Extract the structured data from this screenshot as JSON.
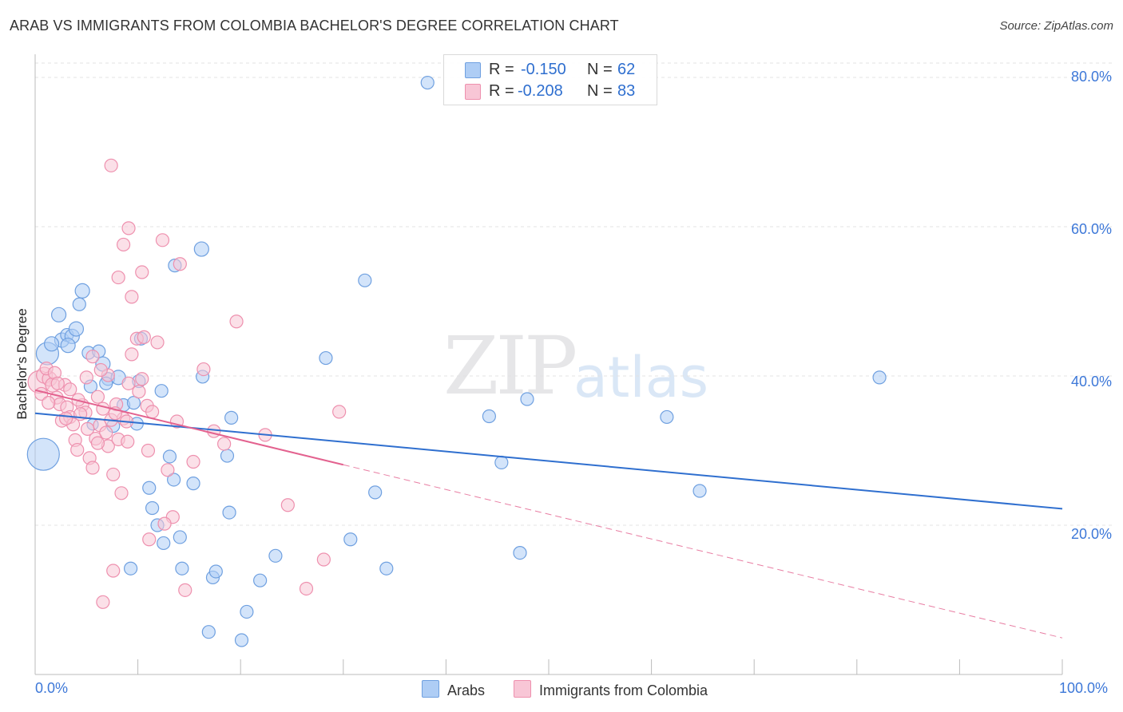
{
  "title": "ARAB VS IMMIGRANTS FROM COLOMBIA BACHELOR'S DEGREE CORRELATION CHART",
  "source": "Source: ZipAtlas.com",
  "watermark": {
    "zip": "ZIP",
    "atlas": "atlas"
  },
  "stats": [
    {
      "r_label": "R =",
      "r": "-0.150",
      "n_label": "N =",
      "n": "62",
      "color": "#aecdf5",
      "border": "#6fa0e0"
    },
    {
      "r_label": "R =",
      "r": "-0.208",
      "n_label": "N =",
      "n": "83",
      "color": "#f8c6d6",
      "border": "#ee90ae"
    }
  ],
  "legend": {
    "arabs": "Arabs",
    "colombia": "Immigrants from Colombia"
  },
  "x_ticks": {
    "min": "0.0%",
    "max": "100.0%"
  },
  "chart_data": {
    "type": "scatter",
    "title": "ARAB VS IMMIGRANTS FROM COLOMBIA BACHELOR'S DEGREE CORRELATION CHART",
    "xlabel": "",
    "ylabel": "Bachelor's Degree",
    "xlim": [
      0,
      100
    ],
    "ylim": [
      0,
      80
    ],
    "y_ticks": [
      {
        "value": 20,
        "label": "20.0%"
      },
      {
        "value": 40,
        "label": "40.0%"
      },
      {
        "value": 60,
        "label": "60.0%"
      },
      {
        "value": 80,
        "label": "80.0%"
      }
    ],
    "grid": true,
    "legend_position": "bottom",
    "series": [
      {
        "name": "Arabs",
        "color": "#6fa0e0",
        "fill": "#aecdf5",
        "trend": {
          "x0": 0,
          "y0": 35.0,
          "x1": 100,
          "y1": 22.2,
          "color": "#2f6fcf"
        },
        "points": [
          [
            1.2,
            43.0,
            14
          ],
          [
            0.8,
            29.5,
            20
          ],
          [
            2.3,
            48.2,
            9
          ],
          [
            2.6,
            44.8,
            9
          ],
          [
            3.1,
            45.5,
            8
          ],
          [
            3.6,
            45.3,
            9
          ],
          [
            4.0,
            46.3,
            9
          ],
          [
            4.3,
            49.6,
            8
          ],
          [
            4.6,
            51.4,
            9
          ],
          [
            5.2,
            43.1,
            8
          ],
          [
            5.6,
            33.5,
            7
          ],
          [
            6.2,
            43.3,
            8
          ],
          [
            6.6,
            41.6,
            9
          ],
          [
            5.4,
            38.6,
            8
          ],
          [
            7.1,
            39.6,
            8
          ],
          [
            8.1,
            39.8,
            9
          ],
          [
            8.6,
            36.1,
            8
          ],
          [
            7.6,
            33.3,
            8
          ],
          [
            9.6,
            36.4,
            8
          ],
          [
            10.1,
            39.3,
            8
          ],
          [
            10.3,
            45.0,
            8
          ],
          [
            11.1,
            25.0,
            8
          ],
          [
            11.4,
            22.3,
            8
          ],
          [
            11.9,
            20.0,
            8
          ],
          [
            12.5,
            17.6,
            8
          ],
          [
            12.3,
            38.0,
            8
          ],
          [
            13.1,
            29.2,
            8
          ],
          [
            13.5,
            26.1,
            8
          ],
          [
            14.1,
            18.4,
            8
          ],
          [
            14.3,
            14.2,
            8
          ],
          [
            15.4,
            25.6,
            8
          ],
          [
            16.3,
            39.9,
            8
          ],
          [
            17.3,
            13.0,
            8
          ],
          [
            17.6,
            13.8,
            8
          ],
          [
            18.7,
            29.3,
            8
          ],
          [
            19.1,
            34.4,
            8
          ],
          [
            16.9,
            5.7,
            8
          ],
          [
            18.9,
            21.7,
            8
          ],
          [
            20.6,
            8.4,
            8
          ],
          [
            20.1,
            4.6,
            8
          ],
          [
            21.9,
            12.6,
            8
          ],
          [
            23.4,
            15.9,
            8
          ],
          [
            16.2,
            57.0,
            9
          ],
          [
            13.6,
            54.8,
            8
          ],
          [
            9.3,
            14.2,
            8
          ],
          [
            28.3,
            42.4,
            8
          ],
          [
            30.7,
            18.1,
            8
          ],
          [
            32.1,
            52.8,
            8
          ],
          [
            33.1,
            24.4,
            8
          ],
          [
            34.2,
            14.2,
            8
          ],
          [
            38.2,
            79.3,
            8
          ],
          [
            44.2,
            34.6,
            8
          ],
          [
            45.4,
            28.4,
            8
          ],
          [
            47.2,
            16.3,
            8
          ],
          [
            47.9,
            36.9,
            8
          ],
          [
            61.5,
            34.5,
            8
          ],
          [
            64.7,
            24.6,
            8
          ],
          [
            82.2,
            39.8,
            8
          ],
          [
            9.9,
            33.6,
            8
          ],
          [
            6.9,
            39.0,
            8
          ],
          [
            3.2,
            44.1,
            9
          ],
          [
            1.6,
            44.3,
            9
          ]
        ]
      },
      {
        "name": "Immigrants from Colombia",
        "color": "#ee90ae",
        "fill": "#f8c6d6",
        "trend": {
          "x0": 0,
          "y0": 38.1,
          "x1": 30,
          "y1": 28.1,
          "color": "#e3628f"
        },
        "trend_dashed": {
          "x0": 30,
          "y0": 28.1,
          "x1": 100,
          "y1": 4.9,
          "color": "#e87ea3"
        },
        "points": [
          [
            0.4,
            39.2,
            14
          ],
          [
            0.9,
            40.1,
            10
          ],
          [
            1.4,
            39.6,
            9
          ],
          [
            1.7,
            38.8,
            9
          ],
          [
            2.1,
            37.1,
            8
          ],
          [
            2.4,
            36.2,
            8
          ],
          [
            2.6,
            34.0,
            8
          ],
          [
            3.1,
            35.8,
            8
          ],
          [
            3.4,
            34.5,
            8
          ],
          [
            3.7,
            33.5,
            8
          ],
          [
            3.9,
            31.4,
            8
          ],
          [
            4.1,
            30.1,
            8
          ],
          [
            4.6,
            36.1,
            8
          ],
          [
            4.9,
            35.1,
            8
          ],
          [
            5.1,
            32.9,
            8
          ],
          [
            5.3,
            29.0,
            8
          ],
          [
            5.6,
            27.7,
            8
          ],
          [
            5.9,
            31.6,
            8
          ],
          [
            6.1,
            37.2,
            8
          ],
          [
            6.3,
            33.4,
            8
          ],
          [
            6.6,
            35.6,
            8
          ],
          [
            6.9,
            32.4,
            8
          ],
          [
            7.1,
            30.6,
            8
          ],
          [
            7.4,
            34.1,
            8
          ],
          [
            7.6,
            26.8,
            8
          ],
          [
            7.9,
            36.2,
            8
          ],
          [
            8.1,
            31.5,
            8
          ],
          [
            8.4,
            24.3,
            8
          ],
          [
            8.6,
            34.3,
            8
          ],
          [
            8.9,
            33.9,
            8
          ],
          [
            9.1,
            39.0,
            8
          ],
          [
            9.4,
            42.9,
            8
          ],
          [
            9.9,
            45.0,
            8
          ],
          [
            10.4,
            39.6,
            8
          ],
          [
            10.9,
            36.0,
            8
          ],
          [
            11.4,
            35.2,
            8
          ],
          [
            11.9,
            44.5,
            8
          ],
          [
            12.4,
            58.2,
            8
          ],
          [
            12.9,
            27.4,
            8
          ],
          [
            13.4,
            21.1,
            8
          ],
          [
            14.1,
            55.0,
            8
          ],
          [
            14.6,
            11.3,
            8
          ],
          [
            15.4,
            28.5,
            8
          ],
          [
            16.4,
            40.9,
            8
          ],
          [
            17.4,
            32.6,
            8
          ],
          [
            18.4,
            30.9,
            8
          ],
          [
            19.6,
            47.3,
            8
          ],
          [
            22.4,
            32.1,
            8
          ],
          [
            24.6,
            22.7,
            8
          ],
          [
            26.4,
            11.5,
            8
          ],
          [
            28.1,
            15.4,
            8
          ],
          [
            29.6,
            35.2,
            8
          ],
          [
            7.4,
            68.2,
            8
          ],
          [
            9.1,
            59.8,
            8
          ],
          [
            8.6,
            57.6,
            8
          ],
          [
            8.1,
            53.2,
            8
          ],
          [
            9.4,
            50.6,
            8
          ],
          [
            10.4,
            53.9,
            8
          ],
          [
            7.6,
            13.9,
            8
          ],
          [
            6.6,
            9.7,
            8
          ],
          [
            11.1,
            18.1,
            8
          ],
          [
            12.6,
            20.2,
            8
          ],
          [
            1.1,
            41.0,
            8
          ],
          [
            1.9,
            40.4,
            8
          ],
          [
            2.9,
            38.8,
            8
          ],
          [
            3.4,
            38.2,
            8
          ],
          [
            4.4,
            34.9,
            8
          ],
          [
            5.6,
            42.6,
            8
          ],
          [
            6.1,
            31.0,
            8
          ],
          [
            7.1,
            40.1,
            8
          ],
          [
            10.1,
            37.9,
            8
          ],
          [
            10.6,
            45.2,
            8
          ],
          [
            0.6,
            37.6,
            8
          ],
          [
            1.3,
            36.4,
            8
          ],
          [
            2.2,
            39.0,
            8
          ],
          [
            3.0,
            34.3,
            8
          ],
          [
            4.2,
            36.8,
            8
          ],
          [
            5.0,
            39.8,
            8
          ],
          [
            6.4,
            40.8,
            8
          ],
          [
            7.8,
            35.0,
            8
          ],
          [
            9.0,
            31.2,
            8
          ],
          [
            11.0,
            30.0,
            8
          ],
          [
            13.8,
            33.9,
            8
          ]
        ]
      }
    ]
  }
}
